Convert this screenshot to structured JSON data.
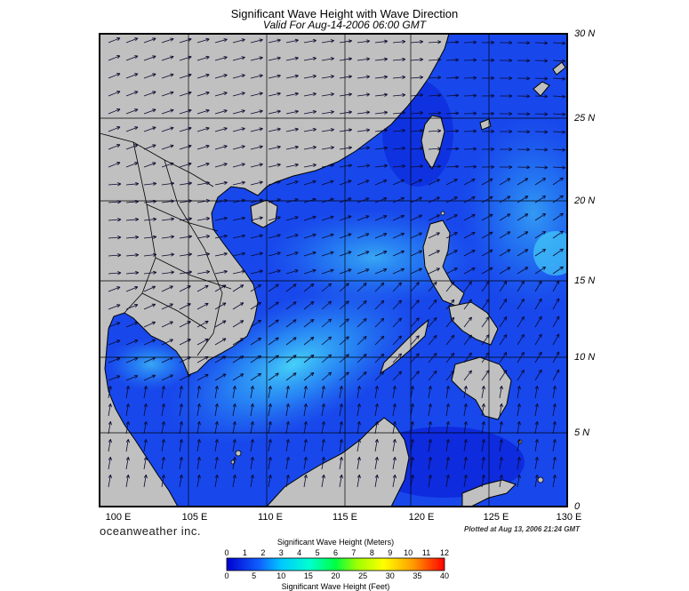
{
  "title": "Significant Wave Height with Wave Direction",
  "subtitle": "Valid For Aug-14-2006 06:00 GMT",
  "lat_labels": [
    "30 N",
    "25 N",
    "20 N",
    "15 N",
    "10 N",
    "5 N",
    "0"
  ],
  "lon_labels": [
    "100 E",
    "105 E",
    "110 E",
    "115 E",
    "120 E",
    "125 E",
    "130 E"
  ],
  "brand": "oceanweather inc.",
  "plotted": "Plotted at Aug 13, 2006 21:24 GMT",
  "colorbar": {
    "title_meters": "Significant Wave Height (Meters)",
    "title_feet": "Significant Wave Height (Feet)",
    "meters_ticks": [
      "0",
      "1",
      "2",
      "3",
      "4",
      "5",
      "6",
      "7",
      "8",
      "9",
      "10",
      "11",
      "12"
    ],
    "feet_ticks": [
      "0",
      "5",
      "10",
      "15",
      "20",
      "25",
      "30",
      "35",
      "40"
    ]
  },
  "colors": {
    "land": "#c0c0c0",
    "ocean_low": "#1030e8",
    "ocean_mid": "#2a78f0",
    "ocean_high": "#40c8f8"
  }
}
